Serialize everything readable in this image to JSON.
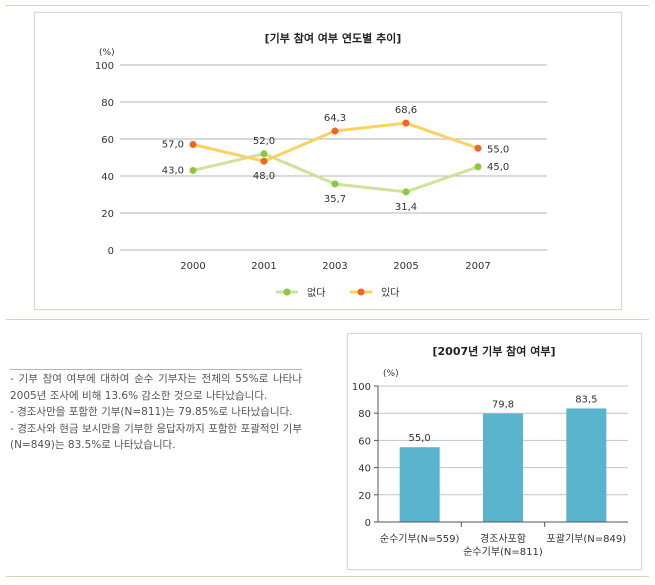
{
  "note": {
    "lines": [
      "- 기부 참여 여부에 대하여 순수 기부자는 전체의 55%로 나타나 2005년 조사에 비해 13.6% 감소한 것으로 나타났습니다.",
      "- 경조사만을 포함한 기부(N=811)는 79.85%로 나타났습니다.",
      "- 경조사와 현금 보시만을 기부한 응답자까지 포함한 포괄적인 기부(N=849)는 83.5%로 나타났습니다."
    ]
  },
  "chart_data": [
    {
      "type": "line",
      "title": "[기부 참여 여부 연도별 추이]",
      "unit_label": "(%)",
      "categories": [
        "2000",
        "2001",
        "2003",
        "2005",
        "2007"
      ],
      "ylim": [
        0,
        100
      ],
      "yticks": [
        "0",
        "20",
        "40",
        "60",
        "80",
        "100"
      ],
      "grid": true,
      "legend_position": "bottom",
      "series": [
        {
          "name": "없다",
          "color": "#8dc63f",
          "line_color": "#cfe29a",
          "values": [
            43.0,
            52.0,
            35.7,
            31.4,
            45.0
          ],
          "labels": [
            "43,0",
            "52,0",
            "35,7",
            "31,4",
            "45,0"
          ]
        },
        {
          "name": "있다",
          "color": "#f26522",
          "line_color": "#f9d262",
          "values": [
            57.0,
            48.0,
            64.3,
            68.6,
            55.0
          ],
          "labels": [
            "57,0",
            "48,0",
            "64,3",
            "68,6",
            "55,0"
          ]
        }
      ]
    },
    {
      "type": "bar",
      "title": "[2007년 기부 참여 여부]",
      "unit_label": "(%)",
      "categories": [
        [
          "순수기부(N=559)"
        ],
        [
          "경조사포함",
          "순수기부(N=811)"
        ],
        [
          "포괄기부(N=849)"
        ]
      ],
      "values": [
        55.0,
        79.8,
        83.5
      ],
      "labels": [
        "55,0",
        "79,8",
        "83,5"
      ],
      "ylim": [
        0,
        100
      ],
      "yticks": [
        "0",
        "20",
        "40",
        "60",
        "80",
        "100"
      ],
      "bar_color": "#5ab4cd",
      "grid": true
    }
  ]
}
